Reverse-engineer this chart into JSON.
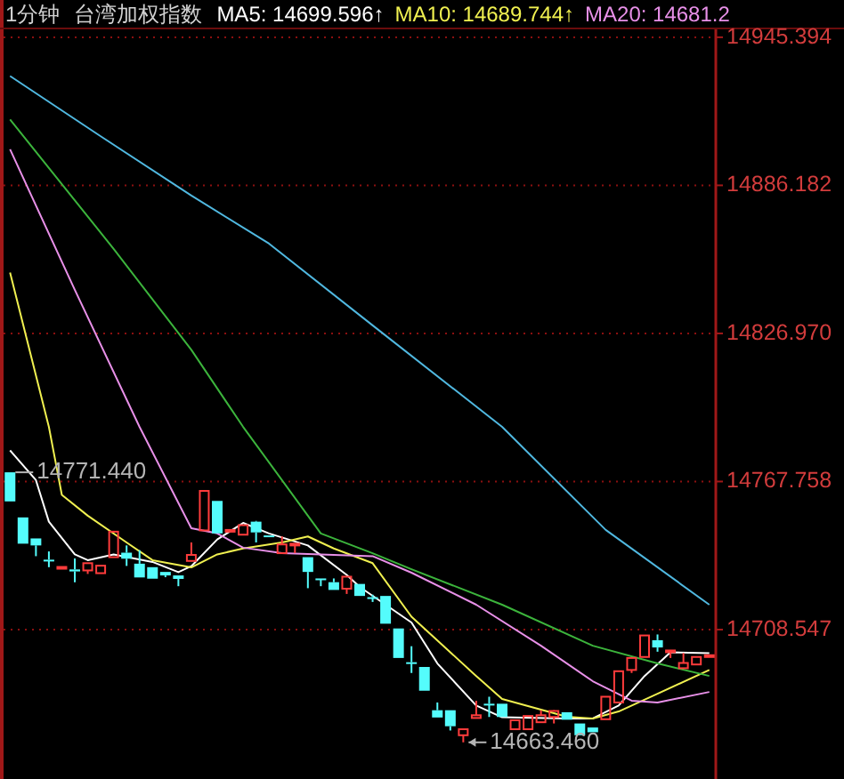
{
  "chart_data": {
    "type": "candlestick",
    "title": "1分钟",
    "subtitle": "台湾加权指数",
    "legend": "top",
    "tick_labels": "y",
    "grid": "y",
    "categories": [
      null,
      null,
      null,
      null,
      null,
      null,
      null,
      null,
      null,
      null,
      null,
      null,
      null,
      null,
      null,
      null,
      null,
      null,
      null,
      null,
      null,
      null,
      null,
      null,
      null,
      null,
      null,
      null,
      null,
      null,
      null,
      null,
      null,
      null,
      null,
      null,
      null,
      null,
      null,
      null,
      null,
      null,
      null,
      null,
      null,
      null,
      null,
      null,
      null,
      null,
      null,
      null,
      null,
      null,
      null
    ],
    "ylim": [
      14648.8,
      14947.5
    ],
    "yticks": [
      14708.547,
      14767.758,
      {
        "value": 14826.97,
        "label": "14826.970"
      },
      14886.182,
      14945.394
    ],
    "ohlc": [
      [
        14771.44,
        14771.44,
        14759.8,
        14759.8
      ],
      [
        14753.4,
        14753.4,
        14742.9,
        14742.9
      ],
      [
        14745.0,
        14745.0,
        14737.9,
        14742.2
      ],
      [
        14736.5,
        14739.8,
        14733.5,
        14736.0
      ],
      [
        14733.2,
        14733.6,
        14733.2,
        14733.6
      ],
      [
        14732.6,
        14737.0,
        14727.5,
        14731.8
      ],
      [
        14732.2,
        14735.1,
        14730.8,
        14735.1
      ],
      [
        14731.1,
        14734.1,
        14731.1,
        14734.1
      ],
      [
        14737.5,
        14747.7,
        14737.5,
        14747.7
      ],
      [
        14739.3,
        14742.2,
        14734.0,
        14736.9
      ],
      [
        14734.9,
        14740.3,
        14729.4,
        14729.4
      ],
      [
        14733.5,
        14733.5,
        14728.9,
        14728.9
      ],
      [
        14731.6,
        14731.6,
        14729.5,
        14730.2
      ],
      [
        14730.2,
        14730.2,
        14725.9,
        14728.8
      ],
      [
        14736.0,
        14743.4,
        14736.0,
        14738.4
      ],
      [
        14748.2,
        14764.0,
        14748.2,
        14764.0
      ],
      [
        14760.0,
        14760.0,
        14747.0,
        14747.0
      ],
      [
        14747.9,
        14748.4,
        14747.9,
        14748.4
      ],
      [
        14746.5,
        14750.3,
        14746.5,
        14750.3
      ],
      [
        14751.7,
        14752.0,
        14743.4,
        14747.4
      ],
      [
        14746.2,
        14746.2,
        14745.7,
        14745.7
      ],
      [
        14739.1,
        14745.8,
        14739.1,
        14742.6
      ],
      [
        14742.5,
        14742.9,
        14739.1,
        14742.9
      ],
      [
        14737.5,
        14737.5,
        14725.1,
        14731.6
      ],
      [
        14729.0,
        14729.0,
        14725.9,
        14728.5
      ],
      [
        14727.5,
        14729.0,
        14724.4,
        14724.4
      ],
      [
        14724.9,
        14729.7,
        14722.8,
        14729.7
      ],
      [
        14726.8,
        14726.8,
        14722.0,
        14722.0
      ],
      [
        14721.5,
        14722.5,
        14719.6,
        14721.0
      ],
      [
        14722.0,
        14722.0,
        14710.9,
        14710.9
      ],
      [
        14709.0,
        14709.0,
        14697.2,
        14697.2
      ],
      [
        14695.5,
        14701.9,
        14691.2,
        14695.0
      ],
      [
        14693.6,
        14693.6,
        14684.1,
        14684.1
      ],
      [
        14676.3,
        14679.4,
        14673.4,
        14673.4
      ],
      [
        14676.3,
        14676.3,
        14668.2,
        14669.9
      ],
      [
        14666.3,
        14668.7,
        14663.46,
        14668.7
      ],
      [
        14673.2,
        14680.1,
        14673.2,
        14674.3
      ],
      [
        14678.9,
        14681.7,
        14673.6,
        14678.6
      ],
      [
        14678.9,
        14678.9,
        14673.6,
        14673.6
      ],
      [
        14668.7,
        14672.5,
        14668.7,
        14672.3
      ],
      [
        14668.7,
        14674.0,
        14668.7,
        14674.0
      ],
      [
        14671.5,
        14676.3,
        14671.5,
        14674.3
      ],
      [
        14673.6,
        14676.3,
        14671.0,
        14676.0
      ],
      [
        14675.5,
        14675.5,
        14672.5,
        14672.5
      ],
      [
        14671.0,
        14671.0,
        14666.3,
        14666.3
      ],
      [
        14669.4,
        14669.4,
        14667.5,
        14667.5
      ],
      [
        14672.7,
        14681.7,
        14672.7,
        14681.7
      ],
      [
        14679.4,
        14691.9,
        14679.4,
        14691.9
      ],
      [
        14692.4,
        14697.2,
        14691.2,
        14697.2
      ],
      [
        14697.6,
        14706.2,
        14697.6,
        14706.2
      ],
      [
        14704.3,
        14706.6,
        14699.7,
        14701.4
      ],
      [
        14699.9,
        14700.2,
        14697.2,
        14700.2
      ],
      [
        14693.1,
        14699.2,
        14693.1,
        14695.2
      ],
      [
        14694.6,
        14697.6,
        14694.6,
        14697.6
      ],
      [
        14698.0,
        14698.3,
        14698.0,
        14698.3
      ]
    ],
    "series": [
      {
        "name": "MA5: 14699.596↑",
        "type": "line",
        "color": "#ffffff",
        "values": [
          14780.2,
          null,
          14768.3,
          14751.7,
          null,
          14738.6,
          14736.3,
          null,
          14738.6,
          null,
          null,
          14735.6,
          null,
          14731.5,
          14733.9,
          null,
          14744.6,
          null,
          14751.2,
          null,
          14747.0,
          null,
          null,
          14742.2,
          null,
          null,
          14730.4,
          14725.6,
          null,
          null,
          null,
          14711.4,
          null,
          14695.0,
          null,
          null,
          14678.2,
          null,
          14673.5,
          null,
          null,
          null,
          null,
          14673.0,
          null,
          14673.0,
          null,
          14678.2,
          null,
          14690.0,
          null,
          14699.5,
          null,
          null,
          14699.1
        ]
      },
      {
        "name": "MA10: 14689.744↑",
        "type": "line",
        "color": "#f0f050",
        "values": [
          14851.3,
          null,
          null,
          14789.6,
          14762.4,
          null,
          14754.1,
          null,
          null,
          14743.4,
          null,
          14736.3,
          null,
          null,
          14733.4,
          null,
          14738.6,
          null,
          14741.0,
          null,
          null,
          14743.4,
          null,
          14745.8,
          null,
          14741.0,
          null,
          null,
          14735.1,
          null,
          null,
          14713.7,
          null,
          null,
          null,
          null,
          14690.0,
          null,
          14680.8,
          null,
          null,
          null,
          null,
          14673.7,
          null,
          14673.0,
          null,
          14675.8,
          null,
          null,
          14682.9,
          null,
          null,
          null,
          14692.4
        ]
      },
      {
        "name": "MA20: 14681.2",
        "type": "line",
        "color": "#e890e8",
        "values": [
          14900.6,
          null,
          null,
          null,
          null,
          14844.4,
          null,
          null,
          null,
          null,
          14789.6,
          null,
          null,
          null,
          14749.1,
          null,
          14747.0,
          null,
          14741.3,
          null,
          null,
          14739.1,
          null,
          null,
          null,
          null,
          null,
          null,
          14737.9,
          null,
          null,
          14731.3,
          null,
          null,
          null,
          null,
          14718.5,
          null,
          null,
          null,
          null,
          14702.1,
          null,
          null,
          null,
          14687.9,
          null,
          null,
          14680.1,
          null,
          14679.4,
          null,
          null,
          null,
          14683.6
        ]
      },
      {
        "type": "line",
        "color": "#3cb43c",
        "values": [
          14912.5,
          null,
          null,
          null,
          null,
          null,
          null,
          null,
          14860.8,
          null,
          null,
          null,
          null,
          null,
          14820.4,
          null,
          null,
          null,
          14789.6,
          null,
          null,
          null,
          null,
          null,
          14747.0,
          null,
          null,
          null,
          14739.1,
          null,
          null,
          14732.7,
          null,
          null,
          null,
          null,
          null,
          null,
          14718.5,
          null,
          null,
          null,
          null,
          null,
          null,
          14702.1,
          null,
          null,
          null,
          null,
          14695.0,
          null,
          null,
          null,
          14690.0
        ]
      },
      {
        "type": "line",
        "color": "#50b8e0",
        "values": [
          14929.9,
          null,
          null,
          null,
          null,
          null,
          null,
          14905.8,
          null,
          null,
          null,
          null,
          null,
          null,
          14882.1,
          null,
          null,
          null,
          null,
          null,
          14862.9,
          null,
          null,
          null,
          null,
          null,
          null,
          null,
          14830.2,
          null,
          null,
          null,
          null,
          null,
          null,
          null,
          null,
          null,
          14789.6,
          null,
          null,
          null,
          null,
          null,
          null,
          null,
          14748.4,
          null,
          null,
          null,
          null,
          null,
          null,
          null,
          14718.5
        ]
      }
    ],
    "annotations": [
      "14771.440",
      "14663.460"
    ]
  }
}
